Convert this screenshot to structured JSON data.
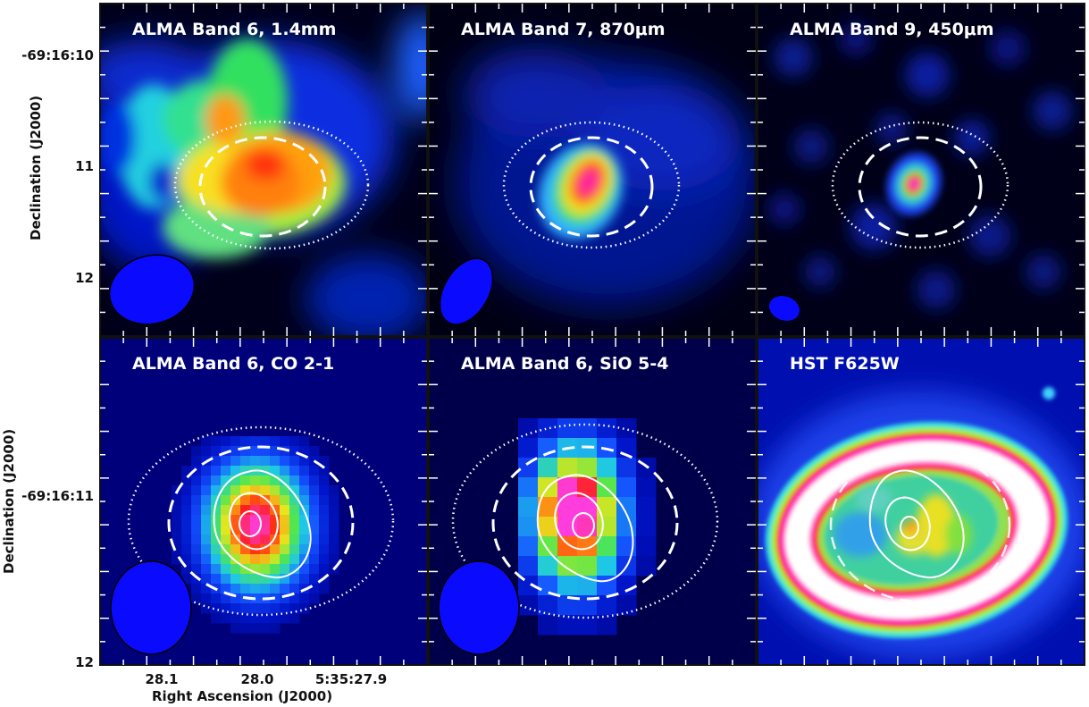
{
  "chart_data": [
    {
      "type": "heatmap",
      "title": "ALMA Band 6, 1.4mm",
      "ylabel": "Declination (J2000)",
      "yticks": [
        "-69:16:10",
        "11",
        "12"
      ]
    },
    {
      "type": "heatmap",
      "title": "ALMA Band 7, 870μm"
    },
    {
      "type": "heatmap",
      "title": "ALMA Band 9, 450μm"
    },
    {
      "type": "heatmap",
      "title": "ALMA Band 6, CO 2-1",
      "ylabel": "Declination (J2000)",
      "yticks": [
        "-69:16:11",
        "12"
      ],
      "xlabel": "Right Ascension (J2000)",
      "xticks": [
        "28.1",
        "28.0",
        "5:35:27.9"
      ]
    },
    {
      "type": "heatmap",
      "title": "ALMA Band 6, SiO 5-4"
    },
    {
      "type": "heatmap",
      "title": "HST F625W"
    }
  ]
}
